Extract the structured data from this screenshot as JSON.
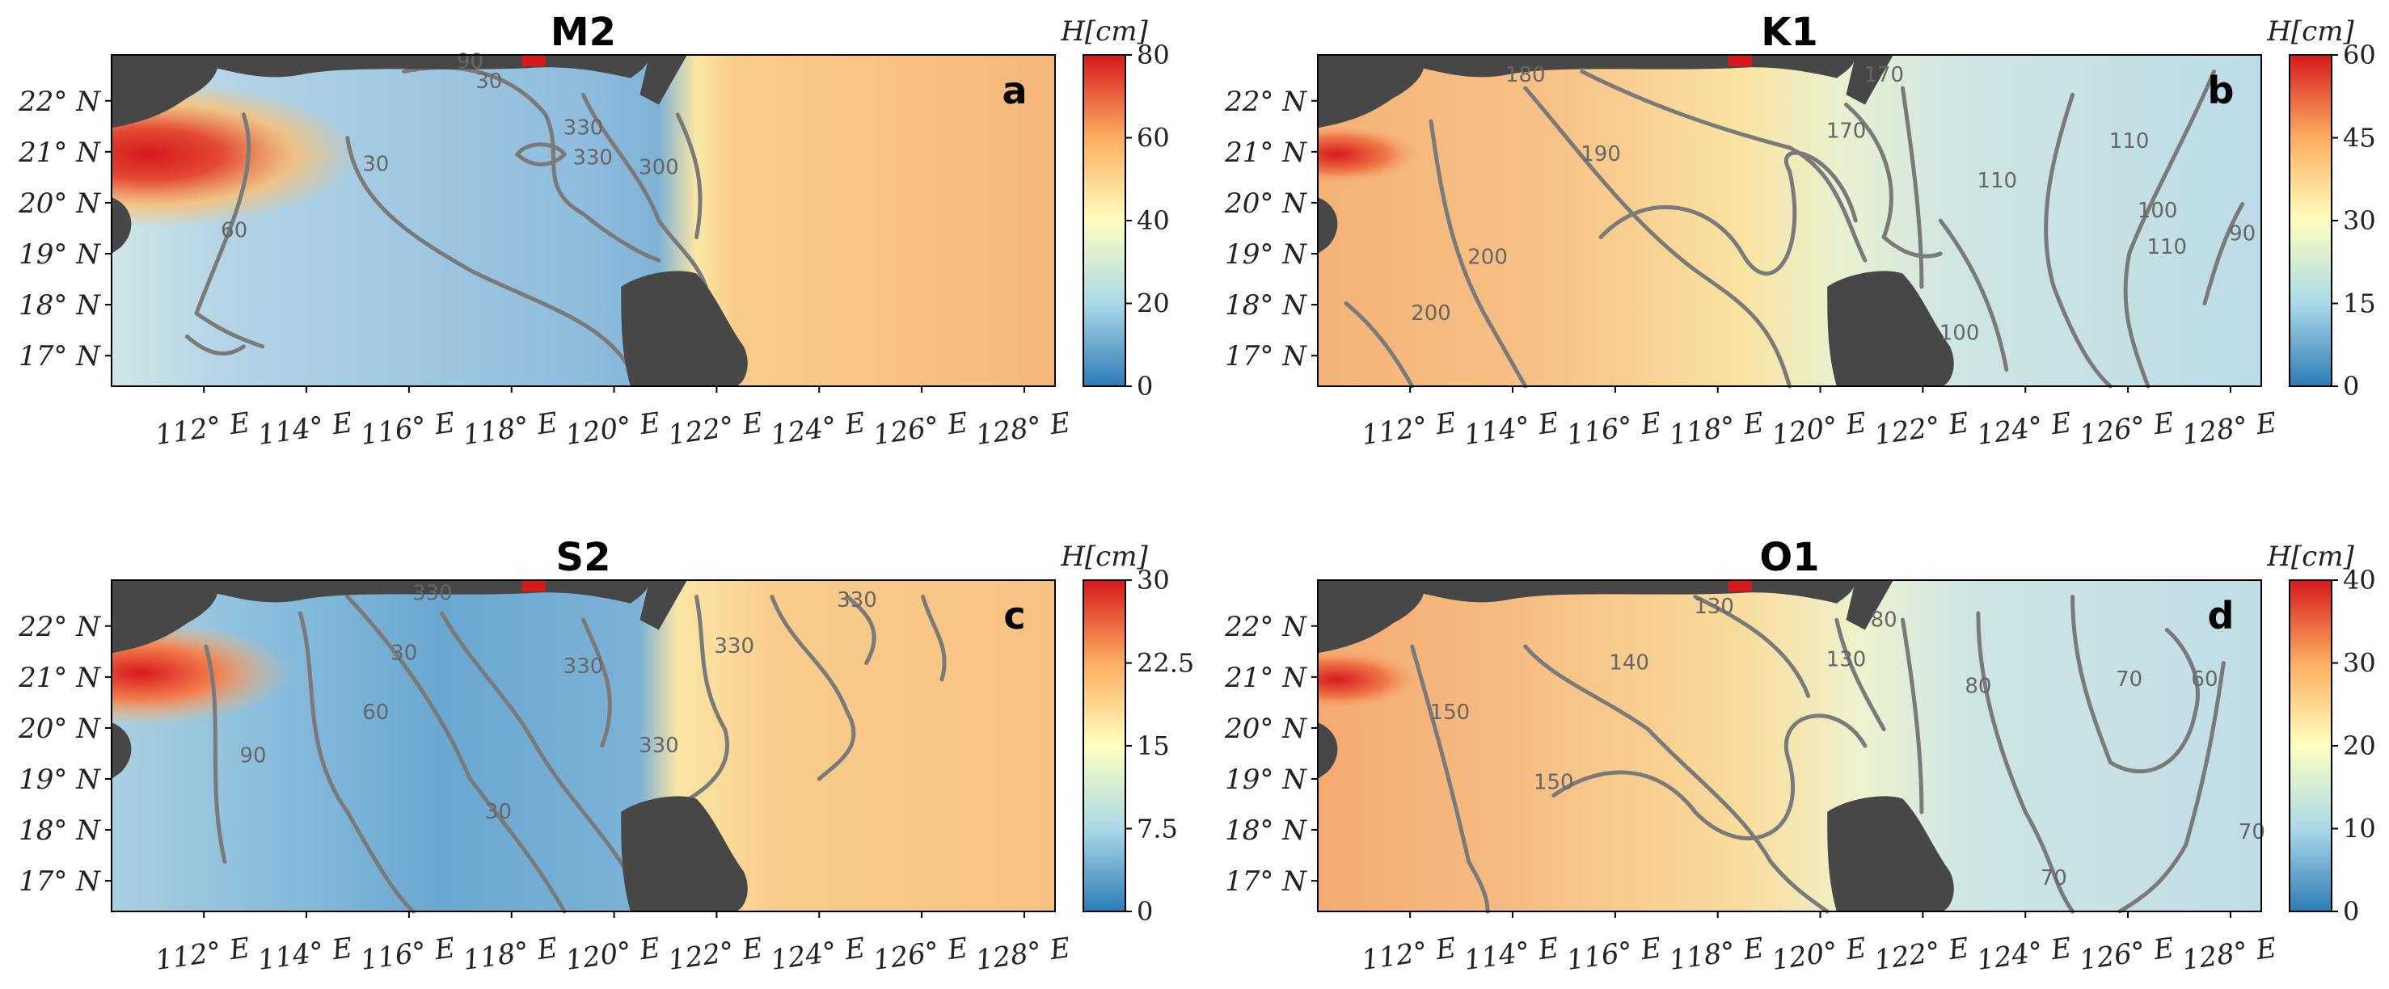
{
  "chart_data": [
    {
      "type": "heatmap",
      "id": "a",
      "title": "M2",
      "panel_letter": "a",
      "x_ticks": [
        "112° E",
        "114° E",
        "116° E",
        "118° E",
        "120° E",
        "122° E",
        "124° E",
        "126° E",
        "128° E"
      ],
      "x_values": [
        112,
        114,
        116,
        118,
        120,
        122,
        124,
        126,
        128
      ],
      "y_ticks": [
        "22° N",
        "21° N",
        "20° N",
        "19° N",
        "18° N",
        "17° N"
      ],
      "y_values": [
        22,
        21,
        20,
        19,
        18,
        17
      ],
      "xlim": [
        110.2,
        128.6
      ],
      "ylim": [
        16.4,
        22.9
      ],
      "colorbar": {
        "label": "H[cm]",
        "ticks": [
          "0",
          "20",
          "40",
          "60",
          "80"
        ],
        "range": [
          0,
          80
        ]
      },
      "contour_labels": [
        "90",
        "30",
        "30",
        "330",
        "330",
        "300",
        "60"
      ],
      "contour_label_values": [
        90,
        30,
        30,
        330,
        330,
        300,
        60
      ]
    },
    {
      "type": "heatmap",
      "id": "b",
      "title": "K1",
      "panel_letter": "b",
      "x_ticks": [
        "112° E",
        "114° E",
        "116° E",
        "118° E",
        "120° E",
        "122° E",
        "124° E",
        "126° E",
        "128° E"
      ],
      "x_values": [
        112,
        114,
        116,
        118,
        120,
        122,
        124,
        126,
        128
      ],
      "y_ticks": [
        "22° N",
        "21° N",
        "20° N",
        "19° N",
        "18° N",
        "17° N"
      ],
      "y_values": [
        22,
        21,
        20,
        19,
        18,
        17
      ],
      "xlim": [
        110.2,
        128.6
      ],
      "ylim": [
        16.4,
        22.9
      ],
      "colorbar": {
        "label": "H[cm]",
        "ticks": [
          "0",
          "15",
          "30",
          "45",
          "60"
        ],
        "range": [
          0,
          60
        ]
      },
      "contour_labels": [
        "180",
        "170",
        "170",
        "190",
        "200",
        "200",
        "110",
        "110",
        "100",
        "110",
        "90",
        "100"
      ],
      "contour_label_values": [
        180,
        170,
        170,
        190,
        200,
        200,
        110,
        110,
        100,
        110,
        90,
        100
      ]
    },
    {
      "type": "heatmap",
      "id": "c",
      "title": "S2",
      "panel_letter": "c",
      "x_ticks": [
        "112° E",
        "114° E",
        "116° E",
        "118° E",
        "120° E",
        "122° E",
        "124° E",
        "126° E",
        "128° E"
      ],
      "x_values": [
        112,
        114,
        116,
        118,
        120,
        122,
        124,
        126,
        128
      ],
      "y_ticks": [
        "22° N",
        "21° N",
        "20° N",
        "19° N",
        "18° N",
        "17° N"
      ],
      "y_values": [
        22,
        21,
        20,
        19,
        18,
        17
      ],
      "xlim": [
        110.2,
        128.6
      ],
      "ylim": [
        16.4,
        22.9
      ],
      "colorbar": {
        "label": "H[cm]",
        "ticks": [
          "0",
          "7.5",
          "15",
          "22.5",
          "30"
        ],
        "range": [
          0,
          30
        ]
      },
      "contour_labels": [
        "330",
        "30",
        "330",
        "330",
        "330",
        "60",
        "90",
        "330",
        "30"
      ],
      "contour_label_values": [
        330,
        30,
        330,
        330,
        330,
        60,
        90,
        330,
        30
      ]
    },
    {
      "type": "heatmap",
      "id": "d",
      "title": "O1",
      "panel_letter": "d",
      "x_ticks": [
        "112° E",
        "114° E",
        "116° E",
        "118° E",
        "120° E",
        "122° E",
        "124° E",
        "126° E",
        "128° E"
      ],
      "x_values": [
        112,
        114,
        116,
        118,
        120,
        122,
        124,
        126,
        128
      ],
      "y_ticks": [
        "22° N",
        "21° N",
        "20° N",
        "19° N",
        "18° N",
        "17° N"
      ],
      "y_values": [
        22,
        21,
        20,
        19,
        18,
        17
      ],
      "xlim": [
        110.2,
        128.6
      ],
      "ylim": [
        16.4,
        22.9
      ],
      "colorbar": {
        "label": "H[cm]",
        "ticks": [
          "0",
          "10",
          "20",
          "30",
          "40"
        ],
        "range": [
          0,
          40
        ]
      },
      "contour_labels": [
        "130",
        "80",
        "130",
        "140",
        "150",
        "150",
        "80",
        "70",
        "60",
        "70",
        "70"
      ],
      "contour_label_values": [
        130,
        80,
        130,
        140,
        150,
        150,
        80,
        70,
        60,
        70,
        70
      ]
    }
  ]
}
